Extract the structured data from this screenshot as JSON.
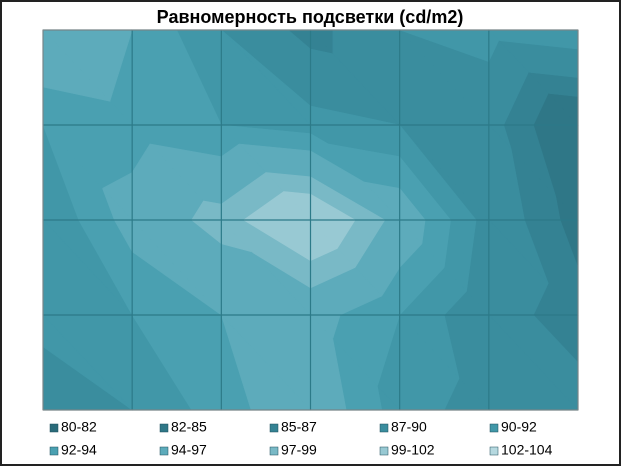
{
  "chart_data": {
    "type": "contour",
    "title": "Равномерность подсветки (cd/m2)",
    "z": [
      [
        97,
        94,
        90,
        86,
        90,
        91,
        92
      ],
      [
        92,
        93,
        92,
        91,
        90,
        88,
        82
      ],
      [
        90,
        95,
        98,
        102,
        96,
        89,
        84
      ],
      [
        91,
        92,
        94,
        95,
        92,
        88,
        86
      ],
      [
        88,
        90,
        93,
        96,
        91,
        89,
        88
      ]
    ],
    "bands": [
      {
        "label": "80-82",
        "from": 80,
        "to": 82,
        "color": "#2a6b7a"
      },
      {
        "label": "82-85",
        "from": 82,
        "to": 85,
        "color": "#2f7787"
      },
      {
        "label": "85-87",
        "from": 85,
        "to": 87,
        "color": "#348293"
      },
      {
        "label": "87-90",
        "from": 87,
        "to": 90,
        "color": "#3a8d9e"
      },
      {
        "label": "90-92",
        "from": 90,
        "to": 92,
        "color": "#4197a8"
      },
      {
        "label": "92-94",
        "from": 92,
        "to": 94,
        "color": "#4aa0b1"
      },
      {
        "label": "94-97",
        "from": 94,
        "to": 97,
        "color": "#5dabbb"
      },
      {
        "label": "97-99",
        "from": 97,
        "to": 99,
        "color": "#79b9c6"
      },
      {
        "label": "99-102",
        "from": 99,
        "to": 102,
        "color": "#98c9d3"
      },
      {
        "label": "102-104",
        "from": 102,
        "to": 104,
        "color": "#b6d9e0"
      }
    ]
  }
}
